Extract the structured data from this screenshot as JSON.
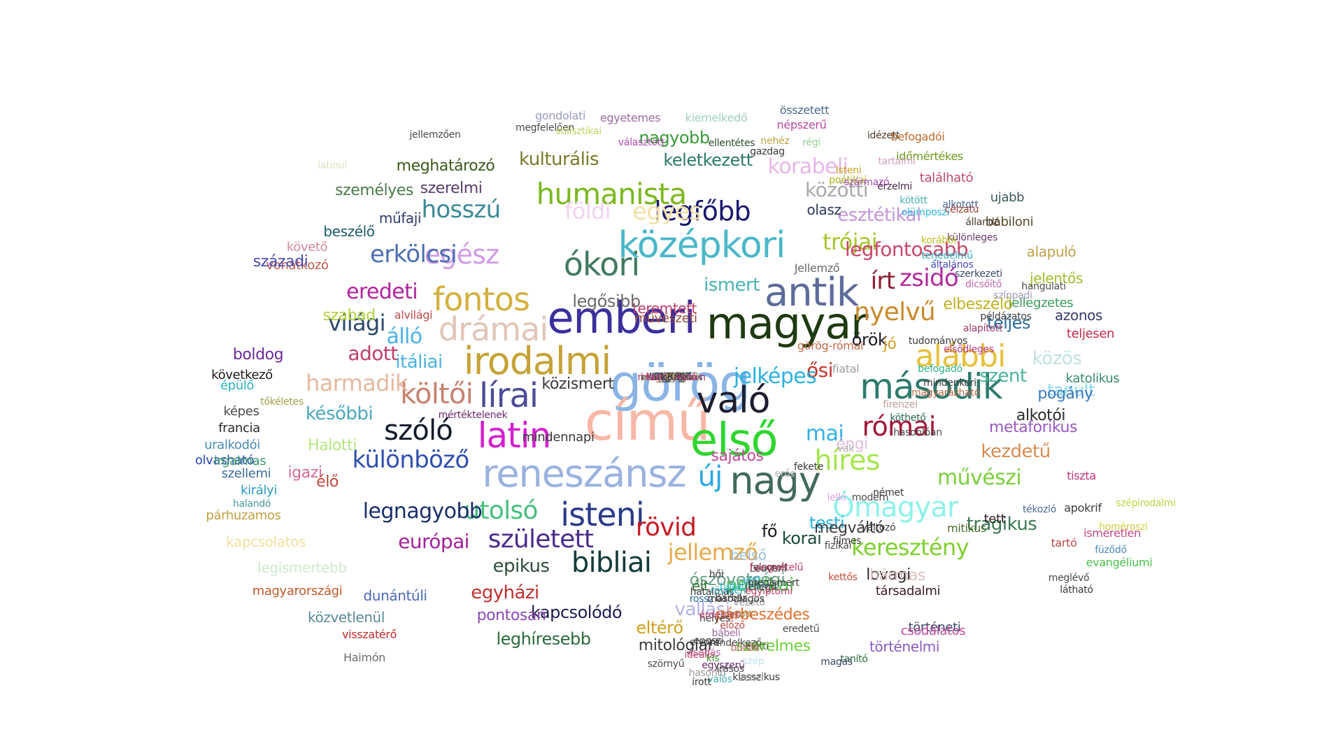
{
  "words": [
    {
      "text": "görög",
      "color": "#8ab4e6"
    },
    {
      "text": "magyar",
      "color": "#1f3a12"
    },
    {
      "text": "emberi",
      "color": "#3b2f9e"
    },
    {
      "text": "című",
      "color": "#f7b7a6"
    },
    {
      "text": "első",
      "color": "#2ed62e"
    },
    {
      "text": "reneszánsz",
      "color": "#9ab2e0"
    },
    {
      "text": "irodalmi",
      "color": "#c6a336"
    },
    {
      "text": "antik",
      "color": "#5e6b9b"
    },
    {
      "text": "középkori",
      "color": "#4ab7c8"
    },
    {
      "text": "való",
      "color": "#1d1d2e"
    },
    {
      "text": "nagy",
      "color": "#416a5a"
    },
    {
      "text": "második",
      "color": "#2e7a6e"
    },
    {
      "text": "latin",
      "color": "#d51fd1"
    },
    {
      "text": "ókori",
      "color": "#417a60"
    },
    {
      "text": "fontos",
      "color": "#d4b03d"
    },
    {
      "text": "drámai",
      "color": "#e1c5b9"
    },
    {
      "text": "humanista",
      "color": "#7bb81f"
    },
    {
      "text": "legfőbb",
      "color": "#1a1672"
    },
    {
      "text": "lírai",
      "color": "#4c4c9a"
    },
    {
      "text": "hosszú",
      "color": "#3a8a95"
    },
    {
      "text": "egész",
      "color": "#d19be6"
    },
    {
      "text": "isteni",
      "color": "#2b3a88"
    },
    {
      "text": "utolsó",
      "color": "#46bf7d"
    },
    {
      "text": "római",
      "color": "#a31737"
    },
    {
      "text": "született",
      "color": "#4a2c8a"
    },
    {
      "text": "bibliai",
      "color": "#143b3a"
    },
    {
      "text": "rövid",
      "color": "#c71b26"
    },
    {
      "text": "jellemző",
      "color": "#e8a94a"
    },
    {
      "text": "Ómagyar",
      "color": "#8ef2e9"
    },
    {
      "text": "alábbi",
      "color": "#e6c13c"
    },
    {
      "text": "szóló",
      "color": "#0f1a2a"
    },
    {
      "text": "költői",
      "color": "#c7826f"
    },
    {
      "text": "híres",
      "color": "#a7e650"
    },
    {
      "text": "nyelvű",
      "color": "#c98a2f"
    },
    {
      "text": "zsidó",
      "color": "#b32b9e"
    },
    {
      "text": "írt",
      "color": "#8a1d2f"
    },
    {
      "text": "új",
      "color": "#2ba8e2"
    },
    {
      "text": "különböző",
      "color": "#2f4fb0"
    },
    {
      "text": "legnagyobb",
      "color": "#1a2f6a"
    },
    {
      "text": "erkölcsi",
      "color": "#4c6fb0"
    },
    {
      "text": "trójai",
      "color": "#a7c72f"
    },
    {
      "text": "legfontosabb",
      "color": "#c9466a"
    },
    {
      "text": "keresztény",
      "color": "#7fd02f"
    },
    {
      "text": "művészi",
      "color": "#7ccf3f"
    },
    {
      "text": "világi",
      "color": "#2c4a6a"
    },
    {
      "text": "harmadik",
      "color": "#e4b9a0"
    },
    {
      "text": "eredeti",
      "color": "#b2239e"
    },
    {
      "text": "álló",
      "color": "#4ab2e6"
    },
    {
      "text": "európai",
      "color": "#a3219a"
    },
    {
      "text": "adott",
      "color": "#c23e6a"
    },
    {
      "text": "egyes",
      "color": "#f2e2a8"
    },
    {
      "text": "ősi",
      "color": "#c3352f"
    },
    {
      "text": "mai",
      "color": "#2fb0e6"
    },
    {
      "text": "korabeli",
      "color": "#e6b8e6"
    },
    {
      "text": "közötti",
      "color": "#a9a9a9"
    },
    {
      "text": "esztétikai",
      "color": "#c294d8"
    },
    {
      "text": "későbbi",
      "color": "#4aa9c0"
    },
    {
      "text": "Halotti",
      "color": "#b5e680"
    },
    {
      "text": "kezdetű",
      "color": "#d68c52"
    },
    {
      "text": "tragikus",
      "color": "#3c7a52"
    },
    {
      "text": "epikus",
      "color": "#2e4e3a"
    },
    {
      "text": "kapcsolódó",
      "color": "#1d1d4e"
    },
    {
      "text": "egyházi",
      "color": "#c02f2f"
    },
    {
      "text": "politikai",
      "color": "#4ec84e"
    },
    {
      "text": "vallási",
      "color": "#b2b2e8"
    },
    {
      "text": "pontosan",
      "color": "#8a4ab2"
    },
    {
      "text": "leghíresebb",
      "color": "#2a6a3a"
    },
    {
      "text": "párbeszédes",
      "color": "#e0702f"
    },
    {
      "text": "eltérő",
      "color": "#d0a020"
    },
    {
      "text": "mitológiai",
      "color": "#3a3a3a"
    },
    {
      "text": "szerelmes",
      "color": "#6ccf3a"
    },
    {
      "text": "történelmi",
      "color": "#8a5ac0"
    },
    {
      "text": "teljes",
      "color": "#2a6a9a"
    },
    {
      "text": "közös",
      "color": "#c0e0e0"
    },
    {
      "text": "tanult",
      "color": "#8adbeb"
    },
    {
      "text": "pogány",
      "color": "#3a7ac0"
    },
    {
      "text": "alkotói",
      "color": "#2a2a2a"
    },
    {
      "text": "metaforikus",
      "color": "#9a5ac0"
    },
    {
      "text": "kulturális",
      "color": "#7a7a2a"
    },
    {
      "text": "meghatározó",
      "color": "#3a5a1a"
    },
    {
      "text": "keletkezett",
      "color": "#2a7a6a"
    },
    {
      "text": "nagyobb",
      "color": "#3a9a3a"
    },
    {
      "text": "személyes",
      "color": "#4a7a4a"
    },
    {
      "text": "szerelmi",
      "color": "#5a3a6a"
    },
    {
      "text": "földi",
      "color": "#f0d4f0"
    },
    {
      "text": "műfaji",
      "color": "#2a3a6a"
    },
    {
      "text": "beszélő",
      "color": "#1a5a6a"
    },
    {
      "text": "követő",
      "color": "#d48a9a"
    },
    {
      "text": "vonatkozó",
      "color": "#c05a4a"
    },
    {
      "text": "századi",
      "color": "#4a4ab2"
    },
    {
      "text": "boldog",
      "color": "#6a2a9a"
    },
    {
      "text": "következő",
      "color": "#1a1a1a"
    },
    {
      "text": "épülő",
      "color": "#2ab2c0"
    },
    {
      "text": "képes",
      "color": "#4a4a4a"
    },
    {
      "text": "francia",
      "color": "#2a2a2a"
    },
    {
      "text": "uralkodói",
      "color": "#4a8ab2"
    },
    {
      "text": "olvasható",
      "color": "#2a4ab2"
    },
    {
      "text": "irgalmas",
      "color": "#3a9a6a"
    },
    {
      "text": "szellemi",
      "color": "#3a6a9a"
    },
    {
      "text": "igazi",
      "color": "#d46a9a"
    },
    {
      "text": "élő",
      "color": "#c04a3a"
    },
    {
      "text": "királyi",
      "color": "#2a9ac0"
    },
    {
      "text": "párhuzamos",
      "color": "#c0a040"
    },
    {
      "text": "kapcsolatos",
      "color": "#f0e0a0"
    },
    {
      "text": "legismertebb",
      "color": "#d0e8d0"
    },
    {
      "text": "magyarországi",
      "color": "#c05a2a"
    },
    {
      "text": "dunántúli",
      "color": "#4a6ab2"
    },
    {
      "text": "közvetlenül",
      "color": "#5a8a9a"
    },
    {
      "text": "visszatérő",
      "color": "#c02a2a"
    },
    {
      "text": "Haimón",
      "color": "#6a6a6a"
    },
    {
      "text": "testi",
      "color": "#2ab2e0"
    },
    {
      "text": "fő",
      "color": "#1a1a1a"
    },
    {
      "text": "korai",
      "color": "#1a4a3a"
    },
    {
      "text": "belső",
      "color": "#a0c0e0"
    },
    {
      "text": "ószövetségi",
      "color": "#6aa08a"
    },
    {
      "text": "élt",
      "color": "#3a7a3a"
    },
    {
      "text": "lovagi",
      "color": "#2a2a2a"
    },
    {
      "text": "hármas",
      "color": "#e0c0c0"
    },
    {
      "text": "társadalmi",
      "color": "#3a1a2a"
    },
    {
      "text": "történeti",
      "color": "#3a4a6a"
    },
    {
      "text": "csodálatos",
      "color": "#c04a9a"
    },
    {
      "text": "gondolati",
      "color": "#9a9ac0"
    },
    {
      "text": "egyetemes",
      "color": "#9a6aa0"
    },
    {
      "text": "kiemelkedő",
      "color": "#a0d0c0"
    },
    {
      "text": "összetett",
      "color": "#4a6a8a"
    },
    {
      "text": "népszerű",
      "color": "#b04aa0"
    },
    {
      "text": "befogadói",
      "color": "#c06a2a"
    },
    {
      "text": "időmértékes",
      "color": "#6a9a1a"
    },
    {
      "text": "található",
      "color": "#c04a6a"
    },
    {
      "text": "ujabb",
      "color": "#3a5a5a"
    },
    {
      "text": "babiloni",
      "color": "#5a4a2a"
    },
    {
      "text": "alapuló",
      "color": "#c0a04a"
    },
    {
      "text": "jelentős",
      "color": "#a0c02a"
    },
    {
      "text": "jellegzetes",
      "color": "#3a9a5a"
    },
    {
      "text": "teljesen",
      "color": "#c02a4a"
    },
    {
      "text": "katolikus",
      "color": "#3a8a6a"
    },
    {
      "text": "ismert",
      "color": "#4ab2b2"
    },
    {
      "text": "teremtett",
      "color": "#c03a6a"
    },
    {
      "text": "olasz",
      "color": "#2a3a5a"
    },
    {
      "text": "művészeti",
      "color": "#9a4a3a"
    },
    {
      "text": "itáliai",
      "color": "#4ab2e0"
    },
    {
      "text": "szabad",
      "color": "#b0d040"
    },
    {
      "text": "éngi",
      "color": "#e0c0e0"
    },
    {
      "text": "szent",
      "color": "#4ab2a0"
    },
    {
      "text": "örök",
      "color": "#1a1a2a"
    },
    {
      "text": "jó",
      "color": "#d0a020"
    },
    {
      "text": "fiatal",
      "color": "#a0a0a0"
    },
    {
      "text": "elbeszélő",
      "color": "#c0b020"
    },
    {
      "text": "azonos",
      "color": "#3a3a6a"
    },
    {
      "text": "tőkéletes",
      "color": "#a0a04a"
    },
    {
      "text": "halandó",
      "color": "#4a9a9a"
    },
    {
      "text": "szépirodalmi",
      "color": "#c0d040"
    },
    {
      "text": "homéroszi",
      "color": "#d0d040"
    },
    {
      "text": "evangéliumi",
      "color": "#4ac04a"
    },
    {
      "text": "füződő",
      "color": "#4a8ac0"
    },
    {
      "text": "meglévő",
      "color": "#4a4a4a"
    },
    {
      "text": "látható",
      "color": "#3a3a3a"
    },
    {
      "text": "ismeretlen",
      "color": "#c04a8a"
    },
    {
      "text": "tartó",
      "color": "#c04a4a"
    },
    {
      "text": "apokrif",
      "color": "#3a3a3a"
    },
    {
      "text": "tékozló",
      "color": "#4a6a9a"
    },
    {
      "text": "tiszta",
      "color": "#c0307a"
    },
    {
      "text": "mitikus",
      "color": "#4a6a2a"
    },
    {
      "text": "tett",
      "color": "#2a1a1a"
    },
    {
      "text": "rossz",
      "color": "#2a6a9a"
    },
    {
      "text": "barbár",
      "color": "#3a3a3a"
    },
    {
      "text": "tanító",
      "color": "#2a6a3a"
    },
    {
      "text": "magas",
      "color": "#3a4a6a"
    },
    {
      "text": "eredetű",
      "color": "#4a4a4a"
    },
    {
      "text": "csodás",
      "color": "#c06ab0"
    },
    {
      "text": "egyszerű",
      "color": "#6a2a6a"
    },
    {
      "text": "szörnyű",
      "color": "#4a4a4a"
    },
    {
      "text": "latinul",
      "color": "#e0e0c0"
    },
    {
      "text": "jellemzően",
      "color": "#4a4a4a"
    },
    {
      "text": "megfelelően",
      "color": "#4a4a4a"
    },
    {
      "text": "stilisztikai",
      "color": "#c0d060"
    },
    {
      "text": "választott",
      "color": "#b04ab0"
    },
    {
      "text": "ellentétes",
      "color": "#2a4a2a"
    },
    {
      "text": "nehéz",
      "color": "#c0a040"
    },
    {
      "text": "gazdag",
      "color": "#3a3a3a"
    },
    {
      "text": "régi",
      "color": "#9ad09a"
    },
    {
      "text": "idézett",
      "color": "#4a3a2a"
    },
    {
      "text": "Isteni",
      "color": "#d0a020"
    },
    {
      "text": "poétikai",
      "color": "#b0b020"
    },
    {
      "text": "származó",
      "color": "#a04ab0"
    },
    {
      "text": "érzelmi",
      "color": "#4a2a4a"
    },
    {
      "text": "tartalmi",
      "color": "#d0a0c0"
    },
    {
      "text": "kötött",
      "color": "#4ab2b2"
    },
    {
      "text": "olümposzi",
      "color": "#2ab2e0"
    },
    {
      "text": "alkotott",
      "color": "#4a6a9a"
    },
    {
      "text": "célzatú",
      "color": "#9a3a2a"
    },
    {
      "text": "állandó",
      "color": "#4a3a2a"
    },
    {
      "text": "különleges",
      "color": "#6a3a6a"
    },
    {
      "text": "korábbi",
      "color": "#c0c020"
    },
    {
      "text": "terjedelmű",
      "color": "#2ab2c0"
    },
    {
      "text": "általános",
      "color": "#4a4ac0"
    },
    {
      "text": "szerkezeti",
      "color": "#3a4a6a"
    },
    {
      "text": "dicsőítő",
      "color": "#c06ab0"
    },
    {
      "text": "hangulati",
      "color": "#4a4a4a"
    },
    {
      "text": "színpadi",
      "color": "#9a9ac0"
    },
    {
      "text": "példázatos",
      "color": "#3a3a3a"
    },
    {
      "text": "alapított",
      "color": "#a03a6a"
    },
    {
      "text": "tudományos",
      "color": "#3a3a3a"
    },
    {
      "text": "elsődleges",
      "color": "#c03a8a"
    },
    {
      "text": "befogadó",
      "color": "#2ab28a"
    },
    {
      "text": "mindenkori",
      "color": "#3a3a3a"
    },
    {
      "text": "magyarázható",
      "color": "#c06a4a"
    },
    {
      "text": "firenzei",
      "color": "#c09a9a"
    },
    {
      "text": "köthető",
      "color": "#2a6a4a"
    },
    {
      "text": "hasonlóan",
      "color": "#4a4a4a"
    },
    {
      "text": "vak",
      "color": "#b0b0b0"
    },
    {
      "text": "fekete",
      "color": "#3a3a3a"
    },
    {
      "text": "erős",
      "color": "#b0b0b0"
    },
    {
      "text": "lelki",
      "color": "#e0a0e0"
    },
    {
      "text": "modern",
      "color": "#4a4a4a"
    },
    {
      "text": "német",
      "color": "#3a3a3a"
    },
    {
      "text": "filmes",
      "color": "#3a3a3a"
    },
    {
      "text": "változó",
      "color": "#3a3a3a"
    },
    {
      "text": "fizikai",
      "color": "#4a4a4a"
    },
    {
      "text": "kettős",
      "color": "#c04a3a"
    },
    {
      "text": "vett",
      "color": "#4ab2e0"
    },
    {
      "text": "hői",
      "color": "#3a3a3a"
    },
    {
      "text": "Leuveni",
      "color": "#4a4a4a"
    },
    {
      "text": "felsorolt",
      "color": "#4a4a4a"
    },
    {
      "text": "hatalmas",
      "color": "#3a3a3a"
    },
    {
      "text": "vezető",
      "color": "#9a9a9a"
    },
    {
      "text": "tartott",
      "color": "#9a7a3a"
    },
    {
      "text": "előző",
      "color": "#c04a4a"
    },
    {
      "text": "bábeli",
      "color": "#9a6a9a"
    },
    {
      "text": "rendelkező",
      "color": "#4a4a4a"
    },
    {
      "text": "eposzi",
      "color": "#4a4a4a"
    },
    {
      "text": "előtti",
      "color": "#4a6a2a"
    },
    {
      "text": "bűnös",
      "color": "#c06a6a"
    },
    {
      "text": "ideális",
      "color": "#c04a6a"
    },
    {
      "text": "szép",
      "color": "#c0e0f0"
    },
    {
      "text": "írásos",
      "color": "#4a4a4a"
    },
    {
      "text": "klasszikus",
      "color": "#3a3a3a"
    },
    {
      "text": "zenei",
      "color": "#9a9a9a"
    },
    {
      "text": "valós",
      "color": "#4ab2b2"
    },
    {
      "text": "írott",
      "color": "#3a3a3a"
    },
    {
      "text": "hasonló",
      "color": "#9a9a9a"
    },
    {
      "text": "kis",
      "color": "#3a9a3a"
    },
    {
      "text": "elvont",
      "color": "#3a3a3a"
    },
    {
      "text": "helyes",
      "color": "#3a3a3a"
    },
    {
      "text": "érdemes",
      "color": "#c04a6a"
    },
    {
      "text": "röviden",
      "color": "#2ab2c0"
    },
    {
      "text": "másodlagos",
      "color": "#3a3a3a"
    },
    {
      "text": "tudatosan",
      "color": "#2ab2c0"
    },
    {
      "text": "jellegű",
      "color": "#3a3a3a"
    },
    {
      "text": "egyiptomi",
      "color": "#c03a6a"
    },
    {
      "text": "megismert",
      "color": "#3a3a3a"
    },
    {
      "text": "hangvételű",
      "color": "#c03a6a"
    },
    {
      "text": "jelképes",
      "color": "#2ab2e0"
    },
    {
      "text": "görög-római",
      "color": "#c06a4a"
    },
    {
      "text": "sajátos",
      "color": "#c04a9a"
    },
    {
      "text": "közismert",
      "color": "#3a3a3a"
    },
    {
      "text": "mindennapi",
      "color": "#3a3a3a"
    },
    {
      "text": "Jellemző",
      "color": "#6a6a6a"
    },
    {
      "text": "legősibb",
      "color": "#6a6a6a"
    },
    {
      "text": "alvilági",
      "color": "#c04a4a"
    },
    {
      "text": "mértéktelenek",
      "color": "#6a2a6a"
    },
    {
      "text": "megváltó",
      "color": "#3a3a3a"
    },
    {
      "text": "egyéni",
      "color": "#3a3a3a"
    },
    {
      "text": "lehetséges",
      "color": "#6a6a2a"
    },
    {
      "text": "anyagi",
      "color": "#4a4a4a"
    },
    {
      "text": "egyfajta",
      "color": "#4a4a4a"
    },
    {
      "text": "érvényű",
      "color": "#2ab28a"
    },
    {
      "text": "művelt",
      "color": "#4ab2a0"
    },
    {
      "text": "szerencsés",
      "color": "#3a3a3a"
    },
    {
      "text": "használt",
      "color": "#6a6a6a"
    },
    {
      "text": "további",
      "color": "#9a4a4a"
    },
    {
      "text": "utáni",
      "color": "#3a3a3a"
    },
    {
      "text": "jézusi",
      "color": "#4a4a4a"
    },
    {
      "text": "alkaioszi",
      "color": "#4a4a4a"
    },
    {
      "text": "intertextuális",
      "color": "#3a3a3a"
    },
    {
      "text": "monologikus",
      "color": "#6a6a6a"
    },
    {
      "text": "szerinti",
      "color": "#4a4a4a"
    },
    {
      "text": "idegen",
      "color": "#6a2a6a"
    },
    {
      "text": "konkrét",
      "color": "#6a3a2a"
    },
    {
      "text": "tartozó",
      "color": "#4a4a4a"
    },
    {
      "text": "szabadon",
      "color": "#c04a9a"
    },
    {
      "text": "legkorábbi",
      "color": "#c06a2a"
    },
    {
      "text": "hosszabb",
      "color": "#3a3a3a"
    },
    {
      "text": "szimbolikus",
      "color": "#6a6a6a"
    },
    {
      "text": "végső",
      "color": "#9ad09a"
    },
    {
      "text": "fenti",
      "color": "#3a3a3a"
    },
    {
      "text": "morális",
      "color": "#3a3a3a"
    },
    {
      "text": "tudós",
      "color": "#2ab28a"
    },
    {
      "text": "verses",
      "color": "#c0e0c0"
    },
    {
      "text": "ún.",
      "color": "#3a3a3a"
    },
    {
      "text": "ritmes",
      "color": "#4a4a4a"
    },
    {
      "text": "biztos",
      "color": "#3a8a6a"
    },
    {
      "text": "alapvető",
      "color": "#4a4a4a"
    },
    {
      "text": "bölcseleti",
      "color": "#3a3a3a"
    },
    {
      "text": "apai",
      "color": "#4a4a4a"
    },
    {
      "text": "fejlett",
      "color": "#4a4a4a"
    },
    {
      "text": "metaforikusan",
      "color": "#a03a6a"
    },
    {
      "text": "szerkesztett",
      "color": "#c0d0a0"
    },
    {
      "text": "alapvető",
      "color": "#4a4a4a"
    },
    {
      "text": "tartalmazó",
      "color": "#c03a8a"
    },
    {
      "text": "közti",
      "color": "#4a4a4a"
    },
    {
      "text": "1.",
      "color": "#c02a2a"
    },
    {
      "text": "2.",
      "color": "#2a6a9a"
    },
    {
      "text": "3.",
      "color": "#c06a2a"
    },
    {
      "text": "4.",
      "color": "#c0b020"
    },
    {
      "text": "5.",
      "color": "#2a2a6a"
    },
    {
      "text": "6.",
      "color": "#3a3a3a"
    },
    {
      "text": "7.",
      "color": "#b0b0e0"
    },
    {
      "text": "8.",
      "color": "#2a2a2a"
    },
    {
      "text": "11.",
      "color": "#c0d0a0"
    },
    {
      "text": "13.",
      "color": "#e0a040"
    },
    {
      "text": "20.",
      "color": "#4a4a4a"
    }
  ]
}
